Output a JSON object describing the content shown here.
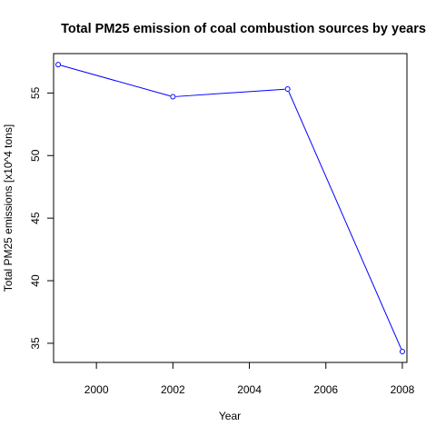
{
  "chart_data": {
    "type": "line",
    "title": "Total PM25 emission of coal combustion sources by years",
    "xlabel": "Year",
    "ylabel": "Total PM25 emissions [x10^4 tons]",
    "x": [
      1999,
      2002,
      2005,
      2008
    ],
    "series": [
      {
        "values": [
          57.27,
          54.7,
          55.32,
          34.34
        ]
      }
    ],
    "xlim": [
      1998.88,
      2008.12
    ],
    "ylim": [
      33.47,
      58.15
    ],
    "xticks": [
      2000,
      2002,
      2004,
      2006,
      2008
    ],
    "xtick_labels": [
      "2000",
      "2002",
      "2004",
      "2006",
      "2008"
    ],
    "yticks": [
      35,
      40,
      45,
      50,
      55
    ],
    "ytick_labels": [
      "35",
      "40",
      "45",
      "50",
      "55"
    ],
    "line_color": "#0000ff",
    "marker": "open-circle",
    "grid": false,
    "legend": "none"
  }
}
